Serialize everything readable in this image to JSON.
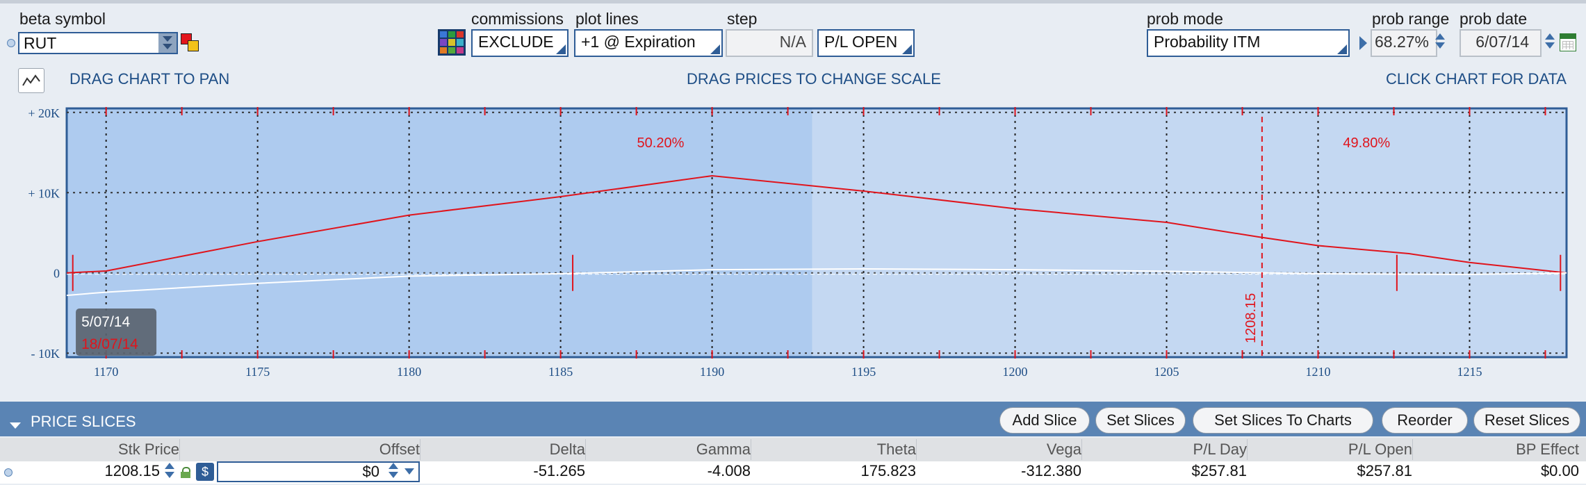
{
  "header": {
    "beta_symbol_label": "beta symbol",
    "beta_symbol_value": "RUT",
    "commissions_label": "commissions",
    "commissions_value": "EXCLUDE",
    "plot_lines_label": "plot lines",
    "plot_lines_value": "+1 @ Expiration",
    "step_label": "step",
    "step_value": "N/A",
    "pl_mode_value": "P/L OPEN",
    "prob_mode_label": "prob mode",
    "prob_mode_value": "Probability ITM",
    "prob_range_label": "prob range",
    "prob_range_value": "68.27%",
    "prob_date_label": "prob date",
    "prob_date_value": "6/07/14"
  },
  "hints": {
    "pan": "DRAG CHART TO PAN",
    "scale": "DRAG PRICES TO CHANGE SCALE",
    "data": "CLICK CHART FOR DATA"
  },
  "chart_data": {
    "type": "line",
    "x_ticks": [
      "1170",
      "1175",
      "1180",
      "1185",
      "1190",
      "1195",
      "1200",
      "1205",
      "1210",
      "1215"
    ],
    "y_ticks": [
      "+ 20K",
      "+ 10K",
      "0",
      "- 10K"
    ],
    "xlim": [
      1168.7,
      1218.2
    ],
    "ylim": [
      -10500,
      20500
    ],
    "grid": true,
    "prob_left": "50.20%",
    "prob_right": "49.80%",
    "current_price": 1208.15,
    "current_price_label": "1208.15",
    "date_label": "5/07/14",
    "date_label_red": "18/07/14",
    "shaded_range": [
      1168.7,
      1193.3
    ],
    "red_markers": [
      1168.9,
      1185.4,
      1212.6,
      1218.0
    ],
    "series": [
      {
        "color": "#e0141c",
        "x": [
          1168.7,
          1170,
          1175,
          1180,
          1185,
          1190,
          1195,
          1200,
          1205,
          1208,
          1210,
          1213,
          1215,
          1218.2
        ],
        "y": [
          0,
          240,
          3900,
          7200,
          9500,
          12100,
          10200,
          8000,
          6300,
          4500,
          3400,
          2400,
          1300,
          0
        ]
      },
      {
        "color": "#ffffff",
        "x": [
          1168.7,
          1170,
          1175,
          1180,
          1185,
          1190,
          1195,
          1200,
          1205,
          1210,
          1215,
          1218.2
        ],
        "y": [
          -2800,
          -2400,
          -1300,
          -400,
          -100,
          400,
          500,
          400,
          200,
          -100,
          -200,
          0
        ]
      }
    ]
  },
  "slices": {
    "title": "PRICE SLICES",
    "buttons": [
      "Add Slice",
      "Set Slices",
      "Set Slices To Charts",
      "Reorder",
      "Reset Slices"
    ],
    "columns": [
      "Stk Price",
      "Offset",
      "Delta",
      "Gamma",
      "Theta",
      "Vega",
      "P/L Day",
      "P/L Open",
      "BP Effect"
    ],
    "row": {
      "stk_price": "1208.15",
      "dollar": "$",
      "offset": "$0",
      "delta": "-51.265",
      "gamma": "-4.008",
      "theta": "175.823",
      "vega": "-312.380",
      "pl_day": "$257.81",
      "pl_open": "$257.81",
      "bp_effect": "$0.00"
    }
  }
}
